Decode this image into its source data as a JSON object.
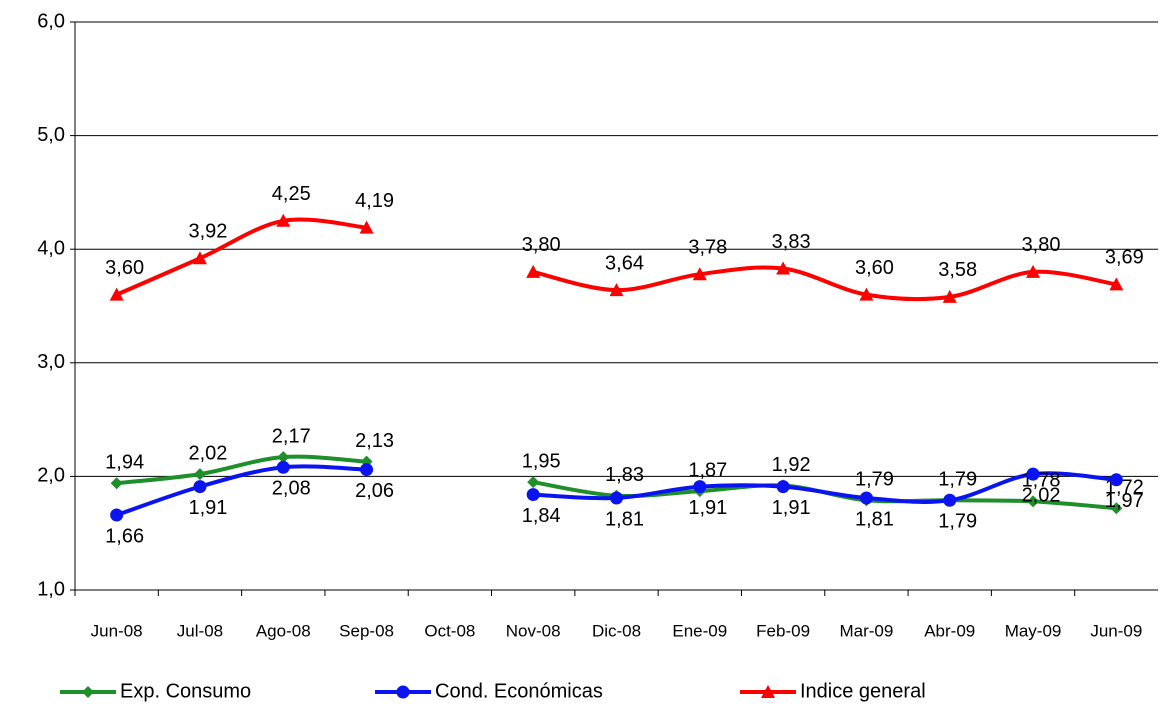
{
  "chart_data": {
    "type": "line",
    "categories": [
      "Jun-08",
      "Jul-08",
      "Ago-08",
      "Sep-08",
      "Oct-08",
      "Nov-08",
      "Dic-08",
      "Ene-09",
      "Feb-09",
      "Mar-09",
      "Abr-09",
      "May-09",
      "Jun-09"
    ],
    "series": [
      {
        "name": "Exp. Consumo",
        "color": "#1f8f2a",
        "marker": "diamond",
        "values": [
          1.94,
          2.02,
          2.17,
          2.13,
          null,
          1.95,
          1.83,
          1.87,
          1.92,
          1.79,
          1.79,
          1.78,
          1.72
        ],
        "value_labels": [
          "1,94",
          "2,02",
          "2,17",
          "2,13",
          null,
          "1,95",
          "1,83",
          "1,87",
          "1,92",
          "1,79",
          "1,79",
          "1,78",
          "1,72"
        ]
      },
      {
        "name": "Cond. Económicas",
        "color": "#0a14f0",
        "marker": "circle",
        "values": [
          1.66,
          1.91,
          2.08,
          2.06,
          null,
          1.84,
          1.81,
          1.91,
          1.91,
          1.81,
          1.79,
          2.02,
          1.97
        ],
        "value_labels": [
          "1,66",
          "1,91",
          "2,08",
          "2,06",
          null,
          "1,84",
          "1,81",
          "1,91",
          "1,91",
          "1,81",
          "1,79",
          "2,02",
          "1,97"
        ]
      },
      {
        "name": "Indice general",
        "color": "#ff0000",
        "marker": "triangle",
        "values": [
          3.6,
          3.92,
          4.25,
          4.19,
          null,
          3.8,
          3.64,
          3.78,
          3.83,
          3.6,
          3.58,
          3.8,
          3.69
        ],
        "value_labels": [
          "3,60",
          "3,92",
          "4,25",
          "4,19",
          null,
          "3,80",
          "3,64",
          "3,78",
          "3,83",
          "3,60",
          "3,58",
          "3,80",
          "3,69"
        ]
      }
    ],
    "ylim": [
      1,
      6
    ],
    "yticks": [
      {
        "value": 1,
        "label": "1,0"
      },
      {
        "value": 2,
        "label": "2,0"
      },
      {
        "value": 3,
        "label": "3,0"
      },
      {
        "value": 4,
        "label": "4,0"
      },
      {
        "value": 5,
        "label": "5,0"
      },
      {
        "value": 6,
        "label": "6,0"
      }
    ],
    "grid": true,
    "legend": "bottom"
  }
}
